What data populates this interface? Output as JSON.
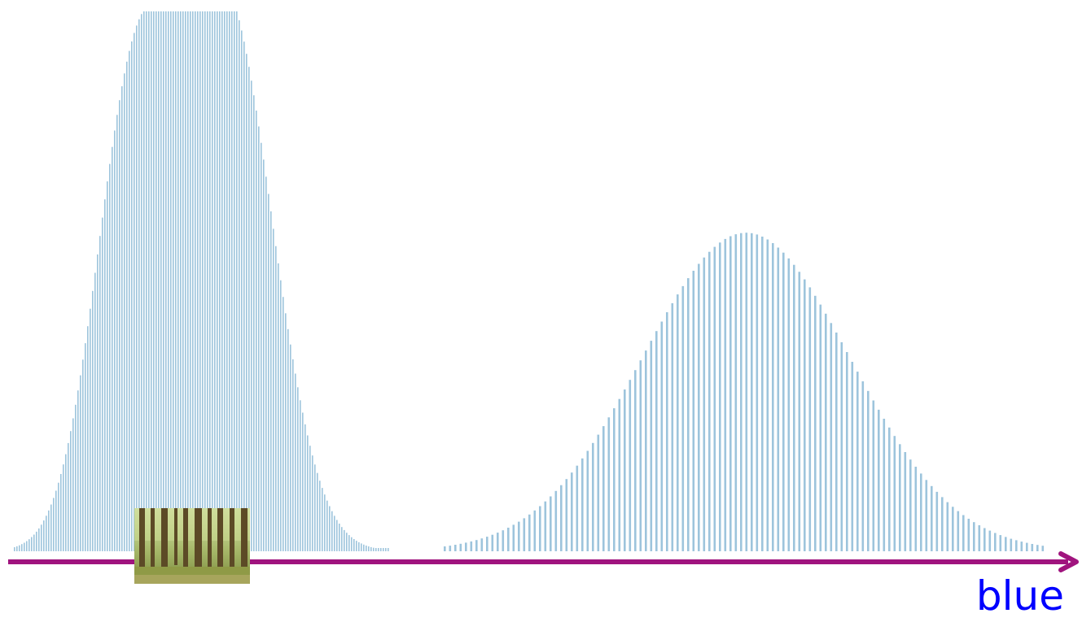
{
  "chart_data": {
    "type": "bar",
    "xlabel": "blue",
    "ylabel": "",
    "title": "",
    "grid": false,
    "legend": "none",
    "ylim": [
      0,
      1
    ],
    "colors": {
      "bars": "#9dc4dc",
      "axis": "#a0147e",
      "xlabel": "#0000ff"
    },
    "series": [
      {
        "distribution": "bimodal",
        "components": [
          {
            "mode_x": 165,
            "peak": 0.82,
            "spread": 48
          },
          {
            "mode_x": 278,
            "peak": 1.0,
            "spread": 57
          }
        ],
        "x_start": 18,
        "x_end": 477,
        "step": 3
      },
      {
        "distribution": "gaussian",
        "components": [
          {
            "mode_x": 916,
            "peak": 0.59,
            "spread": 128
          }
        ],
        "x_start": 546,
        "x_end": 1286,
        "step": 6.5
      }
    ]
  },
  "annotation_image": {
    "subject": "forest",
    "icon": "forest-photo-icon"
  }
}
